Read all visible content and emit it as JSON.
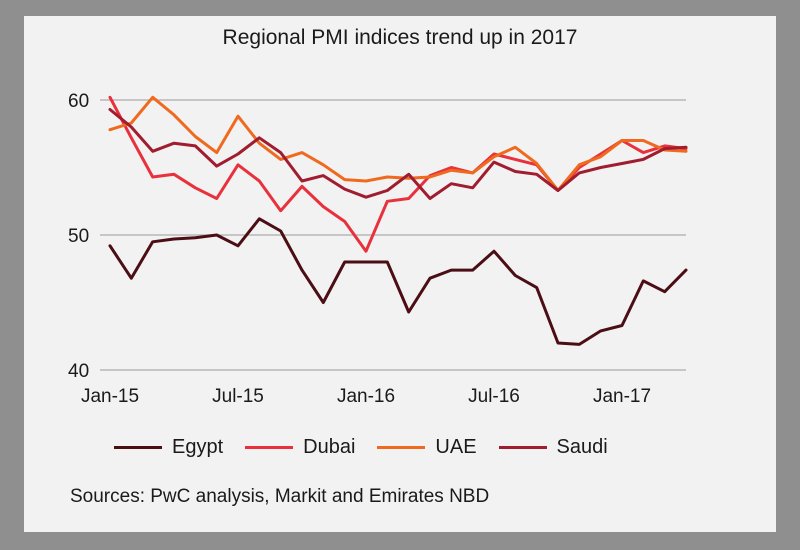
{
  "chart_data": {
    "type": "line",
    "title": "Regional PMI indices trend up in 2017",
    "source": "Sources: PwC analysis, Markit and Emirates NBD",
    "ylim": [
      40,
      60
    ],
    "y_ticks": [
      "60",
      "50",
      "40"
    ],
    "x_tick_labels": [
      "Jan-15",
      "Jul-15",
      "Jan-16",
      "Jul-16",
      "Jan-17"
    ],
    "grid": true,
    "legend_position": "bottom",
    "x": [
      "Jan-15",
      "Feb-15",
      "Mar-15",
      "Apr-15",
      "May-15",
      "Jun-15",
      "Jul-15",
      "Aug-15",
      "Sep-15",
      "Oct-15",
      "Nov-15",
      "Dec-15",
      "Jan-16",
      "Feb-16",
      "Mar-16",
      "Apr-16",
      "May-16",
      "Jun-16",
      "Jul-16",
      "Aug-16",
      "Sep-16",
      "Oct-16",
      "Nov-16",
      "Dec-16",
      "Jan-17",
      "Feb-17",
      "Mar-17",
      "Apr-17"
    ],
    "series": [
      {
        "name": "Egypt",
        "color": "#4a0e14",
        "values": [
          49.2,
          46.8,
          49.5,
          49.7,
          49.8,
          50.0,
          49.2,
          51.2,
          50.3,
          47.4,
          45.0,
          48.0,
          48.0,
          48.0,
          44.3,
          46.8,
          47.4,
          47.4,
          48.8,
          47.0,
          46.1,
          42.0,
          41.9,
          42.9,
          43.3,
          46.6,
          45.8,
          47.4
        ]
      },
      {
        "name": "Dubai",
        "color": "#e8313c",
        "values": [
          60.2,
          57.2,
          54.3,
          54.5,
          53.5,
          52.7,
          55.2,
          54.0,
          51.8,
          53.6,
          52.1,
          51.0,
          48.8,
          52.5,
          52.7,
          54.4,
          55.0,
          54.6,
          56.0,
          55.6,
          55.2,
          53.3,
          55.0,
          56.0,
          57.0,
          56.1,
          56.6,
          56.4
        ]
      },
      {
        "name": "UAE",
        "color": "#ef6a1e",
        "values": [
          57.8,
          58.3,
          60.2,
          58.9,
          57.3,
          56.1,
          58.8,
          56.8,
          55.6,
          56.1,
          55.2,
          54.1,
          54.0,
          54.3,
          54.2,
          54.3,
          54.8,
          54.6,
          55.8,
          56.5,
          55.3,
          53.3,
          55.2,
          55.8,
          57.0,
          57.0,
          56.3,
          56.2
        ]
      },
      {
        "name": "Saudi",
        "color": "#a01c2f",
        "values": [
          59.3,
          58.0,
          56.2,
          56.8,
          56.6,
          55.1,
          56.0,
          57.2,
          56.1,
          54.0,
          54.4,
          53.4,
          52.8,
          53.3,
          54.5,
          52.7,
          53.8,
          53.5,
          55.4,
          54.7,
          54.5,
          53.3,
          54.6,
          55.0,
          55.3,
          55.6,
          56.4,
          56.5
        ]
      }
    ]
  }
}
